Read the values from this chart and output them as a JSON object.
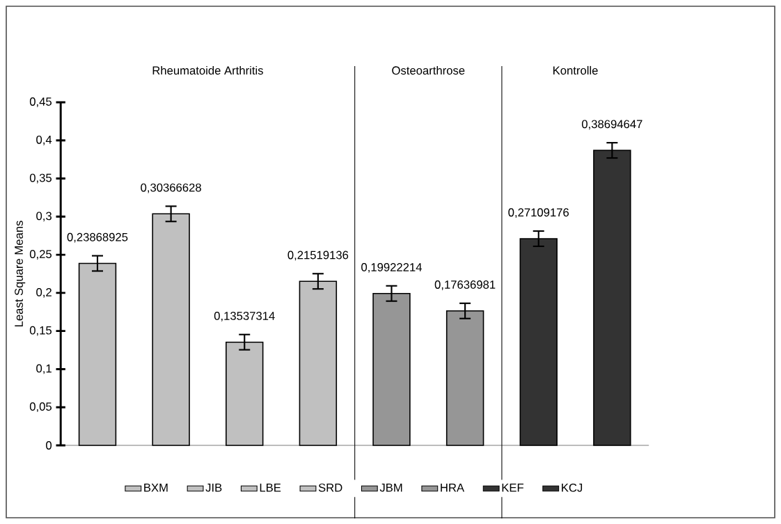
{
  "chart_data": {
    "type": "bar",
    "ylabel": "Least Square Means",
    "categories": [
      null,
      null,
      null,
      null,
      null,
      null,
      null,
      null
    ],
    "series": [
      {
        "name": "BXM",
        "color": "#c0c0c0",
        "values": [
          0.23868925,
          null,
          null,
          null,
          null,
          null,
          null,
          null
        ],
        "errors": [
          0.01,
          null,
          null,
          null,
          null,
          null,
          null,
          null
        ],
        "value_labels": [
          "0,23868925",
          null,
          null,
          null,
          null,
          null,
          null,
          null
        ]
      },
      {
        "name": "JIB",
        "color": "#c0c0c0",
        "values": [
          null,
          0.30366628,
          null,
          null,
          null,
          null,
          null,
          null
        ],
        "errors": [
          null,
          0.01,
          null,
          null,
          null,
          null,
          null,
          null
        ],
        "value_labels": [
          null,
          "0,30366628",
          null,
          null,
          null,
          null,
          null,
          null
        ]
      },
      {
        "name": "LBE",
        "color": "#c0c0c0",
        "values": [
          null,
          null,
          0.13537314,
          null,
          null,
          null,
          null,
          null
        ],
        "errors": [
          null,
          null,
          0.01,
          null,
          null,
          null,
          null,
          null
        ],
        "value_labels": [
          null,
          null,
          "0,13537314",
          null,
          null,
          null,
          null,
          null
        ]
      },
      {
        "name": "SRD",
        "color": "#c0c0c0",
        "values": [
          null,
          null,
          null,
          0.21519136,
          null,
          null,
          null,
          null
        ],
        "errors": [
          null,
          null,
          null,
          0.01,
          null,
          null,
          null,
          null
        ],
        "value_labels": [
          null,
          null,
          null,
          "0,21519136",
          null,
          null,
          null,
          null
        ]
      },
      {
        "name": "JBM",
        "color": "#969696",
        "values": [
          null,
          null,
          null,
          null,
          0.19922214,
          null,
          null,
          null
        ],
        "errors": [
          null,
          null,
          null,
          null,
          0.01,
          null,
          null,
          null
        ],
        "value_labels": [
          null,
          null,
          null,
          null,
          "0,19922214",
          null,
          null,
          null
        ]
      },
      {
        "name": "HRA",
        "color": "#969696",
        "values": [
          null,
          null,
          null,
          null,
          null,
          0.17636981,
          null,
          null
        ],
        "errors": [
          null,
          null,
          null,
          null,
          null,
          0.01,
          null,
          null
        ],
        "value_labels": [
          null,
          null,
          null,
          null,
          null,
          "0,17636981",
          null,
          null
        ]
      },
      {
        "name": "KEF",
        "color": "#333333",
        "values": [
          null,
          null,
          null,
          null,
          null,
          null,
          0.27109176,
          null
        ],
        "errors": [
          null,
          null,
          null,
          null,
          null,
          null,
          0.01,
          null
        ],
        "value_labels": [
          null,
          null,
          null,
          null,
          null,
          null,
          "0,27109176",
          null
        ]
      },
      {
        "name": "KCJ",
        "color": "#333333",
        "values": [
          null,
          null,
          null,
          null,
          null,
          null,
          null,
          0.38694647
        ],
        "errors": [
          null,
          null,
          null,
          null,
          null,
          null,
          null,
          0.01
        ],
        "value_labels": [
          null,
          null,
          null,
          null,
          null,
          null,
          null,
          "0,38694647"
        ]
      }
    ],
    "ylim": [
      0,
      0.45
    ],
    "yticks": [
      0,
      {
        "value": 0.05,
        "label": "0,05"
      },
      {
        "value": 0.1,
        "label": "0,1"
      },
      {
        "value": 0.15,
        "label": "0,15"
      },
      {
        "value": 0.2,
        "label": "0,2"
      },
      {
        "value": 0.25,
        "label": "0,25"
      },
      {
        "value": 0.3,
        "label": "0,3"
      },
      {
        "value": 0.35,
        "label": "0,35"
      },
      {
        "value": 0.4,
        "label": "0,4"
      },
      {
        "value": 0.45,
        "label": "0,45"
      }
    ],
    "annotations": [
      "Rheumatoide Arthritis",
      "Osteoarthrose",
      "Kontrolle"
    ],
    "legend": "bottom",
    "grid": false
  }
}
